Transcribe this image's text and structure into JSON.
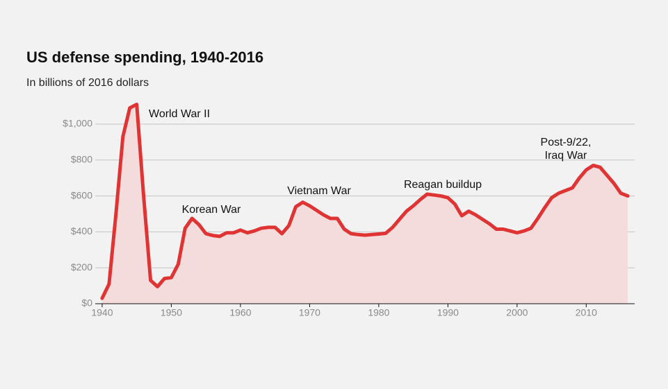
{
  "chart_data": {
    "type": "area",
    "title": "US defense spending, 1940-2016",
    "subtitle": "In billions of 2016 dollars",
    "x": [
      1940,
      1941,
      1942,
      1943,
      1944,
      1945,
      1946,
      1947,
      1948,
      1949,
      1950,
      1951,
      1952,
      1953,
      1954,
      1955,
      1956,
      1957,
      1958,
      1959,
      1960,
      1961,
      1962,
      1963,
      1964,
      1965,
      1966,
      1967,
      1968,
      1969,
      1970,
      1971,
      1972,
      1973,
      1974,
      1975,
      1976,
      1977,
      1978,
      1979,
      1980,
      1981,
      1982,
      1983,
      1984,
      1985,
      1986,
      1987,
      1988,
      1989,
      1990,
      1991,
      1992,
      1993,
      1994,
      1995,
      1996,
      1997,
      1998,
      1999,
      2000,
      2001,
      2002,
      2003,
      2004,
      2005,
      2006,
      2007,
      2008,
      2009,
      2010,
      2011,
      2012,
      2013,
      2014,
      2015,
      2016
    ],
    "values": [
      30,
      110,
      500,
      930,
      1090,
      1110,
      600,
      130,
      95,
      140,
      145,
      220,
      420,
      475,
      440,
      390,
      380,
      375,
      395,
      395,
      410,
      395,
      405,
      420,
      425,
      425,
      390,
      435,
      540,
      565,
      545,
      520,
      495,
      475,
      475,
      415,
      390,
      385,
      382,
      385,
      388,
      392,
      425,
      470,
      515,
      545,
      580,
      610,
      605,
      600,
      590,
      555,
      490,
      515,
      495,
      470,
      445,
      415,
      415,
      405,
      395,
      405,
      420,
      475,
      535,
      590,
      615,
      630,
      645,
      700,
      745,
      770,
      760,
      715,
      670,
      615,
      600
    ],
    "color": "#e03434",
    "fill": "#f5dcdc",
    "xlim": [
      1939,
      2017
    ],
    "xticks": [
      1940,
      1950,
      1960,
      1970,
      1980,
      1990,
      2000,
      2010
    ],
    "ylim": [
      0,
      1000
    ],
    "yticks": [
      {
        "value": 0,
        "label": "$0"
      },
      {
        "value": 200,
        "label": "$200"
      },
      {
        "value": 400,
        "label": "$400"
      },
      {
        "value": 600,
        "label": "$600"
      },
      {
        "value": 800,
        "label": "$800"
      },
      {
        "value": 1000,
        "label": "$1,000"
      }
    ],
    "grid": true,
    "annotations": [
      {
        "lines": [
          "World War II"
        ]
      },
      {
        "lines": [
          "Korean War"
        ]
      },
      {
        "lines": [
          "Vietnam War"
        ]
      },
      {
        "lines": [
          "Reagan buildup"
        ]
      },
      {
        "lines": [
          "Post-9/22,",
          "Iraq War"
        ]
      }
    ]
  }
}
